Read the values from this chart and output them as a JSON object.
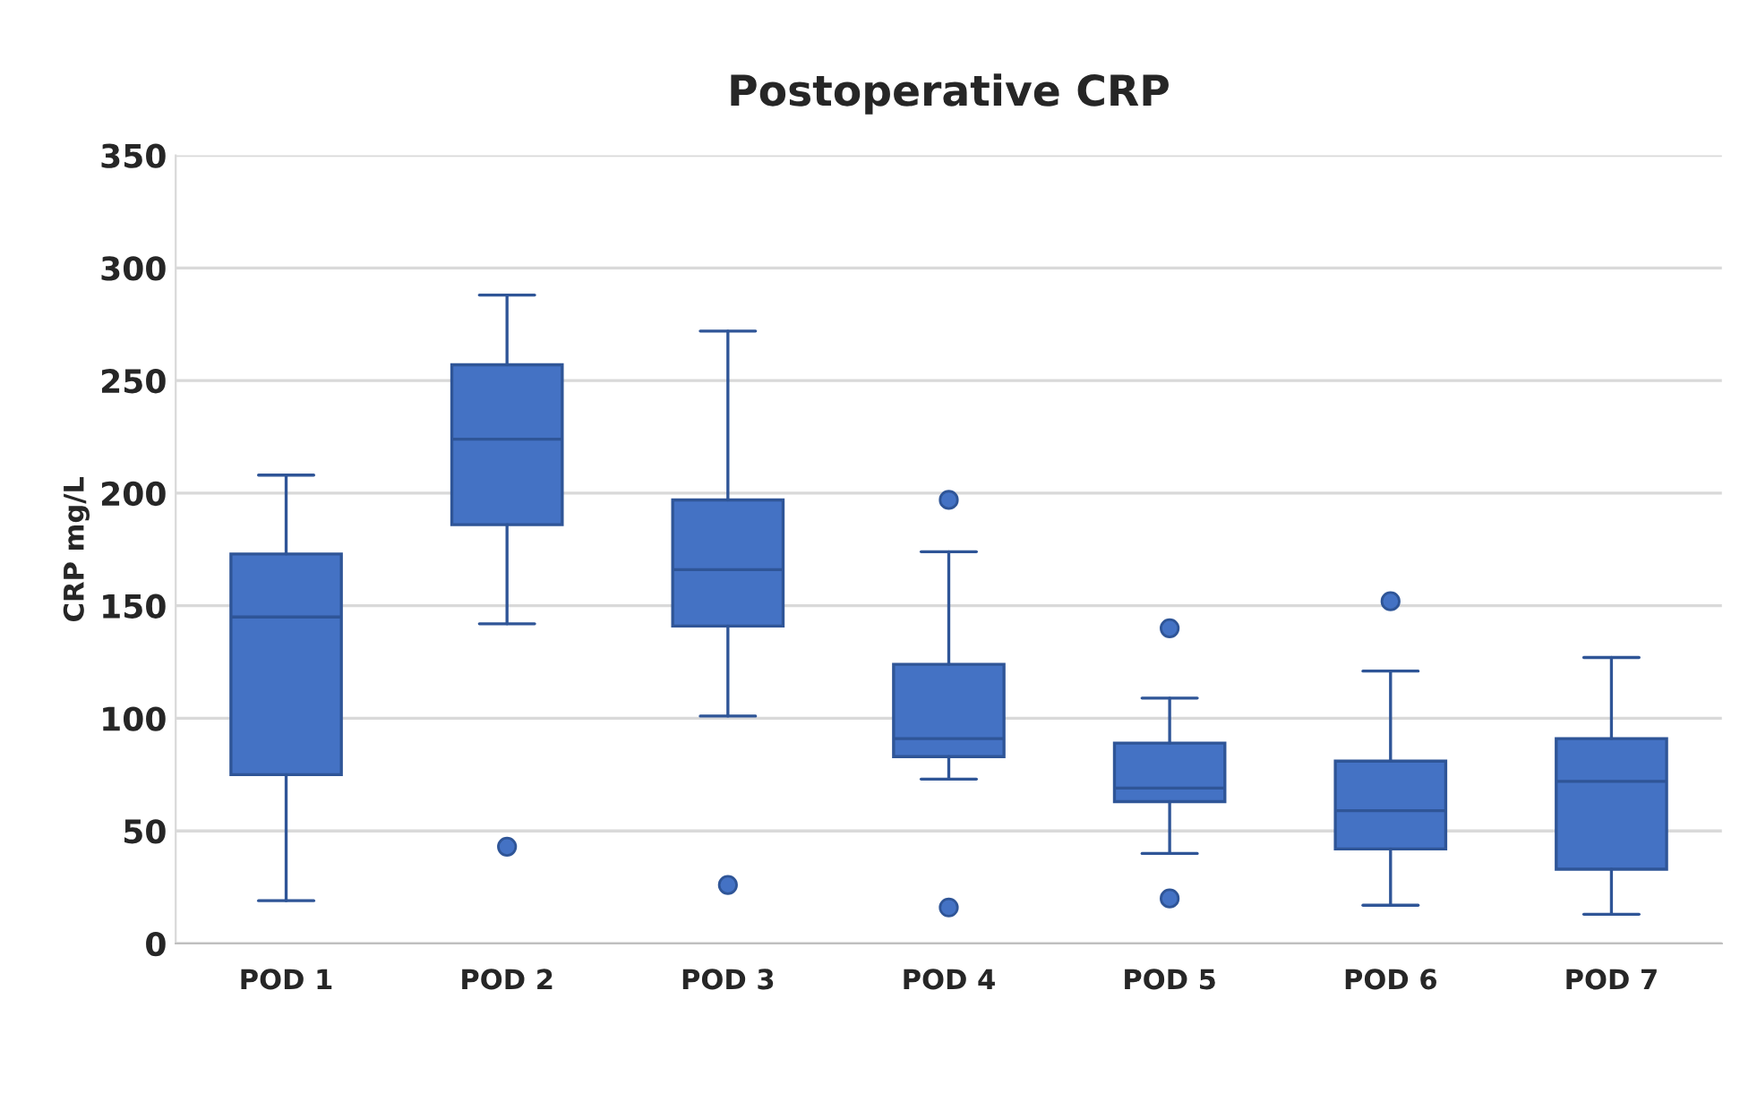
{
  "chart_data": {
    "type": "box",
    "title": "Postoperative CRP",
    "ylabel": "CRP mg/L",
    "categories": [
      "POD 1",
      "POD 2",
      "POD 3",
      "POD 4",
      "POD 5",
      "POD 6",
      "POD 7"
    ],
    "color": "#4472c4",
    "boxes": [
      {
        "low": 19,
        "q1": 75,
        "median": 145,
        "q3": 173,
        "high": 208
      },
      {
        "low": 142,
        "q1": 186,
        "median": 224,
        "q3": 257,
        "high": 288,
        "outliers": [
          43
        ]
      },
      {
        "low": 101,
        "q1": 141,
        "median": 166,
        "q3": 197,
        "high": 272,
        "outliers": [
          26
        ]
      },
      {
        "low": 73,
        "q1": 83,
        "median": 91,
        "q3": 124,
        "high": 174,
        "outliers": [
          197,
          16
        ]
      },
      {
        "low": 40,
        "q1": 63,
        "median": 69,
        "q3": 89,
        "high": 109,
        "outliers": [
          140,
          20
        ]
      },
      {
        "low": 17,
        "q1": 42,
        "median": 59,
        "q3": 81,
        "high": 121,
        "outliers": [
          152
        ]
      },
      {
        "low": 13,
        "q1": 33,
        "median": 72,
        "q3": 91,
        "high": 127
      }
    ],
    "ylim": [
      0,
      350
    ],
    "yticks": [
      0,
      50,
      100,
      150,
      200,
      250,
      300,
      350
    ],
    "grid": "y"
  }
}
